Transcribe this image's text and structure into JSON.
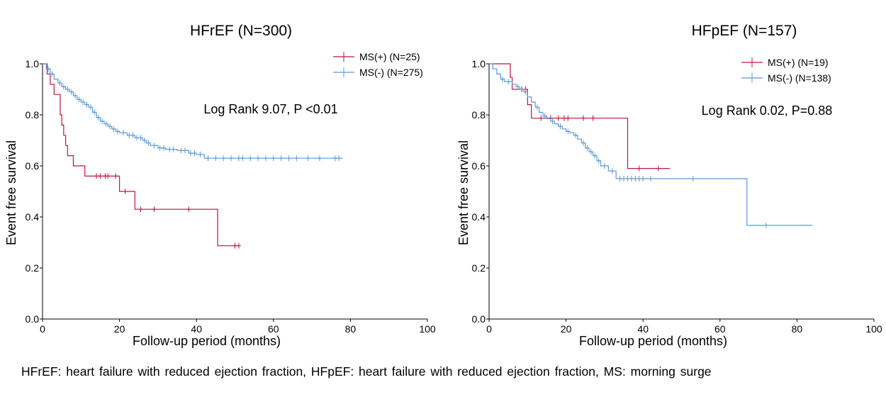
{
  "figure": {
    "caption": "HFrEF: heart failure with reduced ejection fraction, HFpEF: heart failure with reduced ejection fraction, MS: morning surge"
  },
  "chart_data": [
    {
      "type": "line",
      "subtype": "kaplan-meier",
      "title": "HFrEF (N=300)",
      "xlabel": "Follow-up period (months)",
      "ylabel": "Event free survival",
      "xlim": [
        0,
        100
      ],
      "ylim": [
        0.0,
        1.0
      ],
      "xticks": [
        "0",
        "20",
        "40",
        "60",
        "80",
        "100"
      ],
      "yticks": [
        "0.0",
        "0.2",
        "0.4",
        "0.6",
        "0.8",
        "1.0"
      ],
      "annotation": "Log Rank 9.07, P <0.01",
      "legend_position": "top-right",
      "grid": false,
      "series": [
        {
          "name": "MS(+) (N=25)",
          "color": "#c0143c",
          "steps": [
            [
              0,
              1.0
            ],
            [
              1.2,
              0.96
            ],
            [
              2,
              0.92
            ],
            [
              3,
              0.88
            ],
            [
              4.6,
              0.8
            ],
            [
              5,
              0.76
            ],
            [
              5.5,
              0.72
            ],
            [
              6,
              0.68
            ],
            [
              6.5,
              0.64
            ],
            [
              8,
              0.6
            ],
            [
              11,
              0.56
            ],
            [
              20,
              0.5
            ],
            [
              24,
              0.43
            ],
            [
              45.5,
              0.287
            ]
          ],
          "end_x": 51,
          "censored": [
            [
              14,
              0.56
            ],
            [
              15,
              0.56
            ],
            [
              16.3,
              0.56
            ],
            [
              17,
              0.56
            ],
            [
              19,
              0.56
            ],
            [
              21.5,
              0.5
            ],
            [
              25.5,
              0.43
            ],
            [
              29,
              0.43
            ],
            [
              38,
              0.43
            ],
            [
              50,
              0.287
            ],
            [
              51,
              0.287
            ]
          ]
        },
        {
          "name": "MS(-) (N=275)",
          "color": "#5b9bd5",
          "steps": [
            [
              0,
              1.0
            ],
            [
              1,
              0.98
            ],
            [
              2,
              0.96
            ],
            [
              3,
              0.94
            ],
            [
              4,
              0.925
            ],
            [
              5,
              0.91
            ],
            [
              6,
              0.9
            ],
            [
              7,
              0.89
            ],
            [
              8,
              0.875
            ],
            [
              9,
              0.86
            ],
            [
              10,
              0.85
            ],
            [
              11,
              0.84
            ],
            [
              12,
              0.83
            ],
            [
              13,
              0.81
            ],
            [
              14,
              0.79
            ],
            [
              15,
              0.775
            ],
            [
              16,
              0.765
            ],
            [
              17,
              0.755
            ],
            [
              18,
              0.745
            ],
            [
              19,
              0.735
            ],
            [
              20,
              0.73
            ],
            [
              22,
              0.72
            ],
            [
              24,
              0.71
            ],
            [
              26,
              0.7
            ],
            [
              27,
              0.69
            ],
            [
              28,
              0.68
            ],
            [
              30,
              0.67
            ],
            [
              32,
              0.665
            ],
            [
              35,
              0.66
            ],
            [
              38,
              0.65
            ],
            [
              40,
              0.645
            ],
            [
              42,
              0.63
            ]
          ],
          "end_x": 78,
          "censored": [
            [
              1.5,
              0.98
            ],
            [
              2.5,
              0.96
            ],
            [
              4.5,
              0.925
            ],
            [
              5.5,
              0.91
            ],
            [
              6.5,
              0.9
            ],
            [
              7.5,
              0.89
            ],
            [
              8.5,
              0.875
            ],
            [
              9.5,
              0.86
            ],
            [
              10.5,
              0.85
            ],
            [
              11.5,
              0.84
            ],
            [
              12.5,
              0.83
            ],
            [
              13.5,
              0.81
            ],
            [
              14.5,
              0.79
            ],
            [
              15.5,
              0.775
            ],
            [
              16.5,
              0.765
            ],
            [
              17.5,
              0.755
            ],
            [
              18.5,
              0.745
            ],
            [
              19.5,
              0.735
            ],
            [
              21,
              0.73
            ],
            [
              22.5,
              0.72
            ],
            [
              23.5,
              0.72
            ],
            [
              24.5,
              0.71
            ],
            [
              25.5,
              0.71
            ],
            [
              26.5,
              0.7
            ],
            [
              27.5,
              0.69
            ],
            [
              29,
              0.68
            ],
            [
              30.5,
              0.67
            ],
            [
              31.5,
              0.67
            ],
            [
              33,
              0.665
            ],
            [
              34,
              0.665
            ],
            [
              36,
              0.66
            ],
            [
              37,
              0.66
            ],
            [
              38.5,
              0.65
            ],
            [
              39.5,
              0.65
            ],
            [
              41,
              0.645
            ],
            [
              43,
              0.63
            ],
            [
              45,
              0.63
            ],
            [
              47,
              0.63
            ],
            [
              49,
              0.63
            ],
            [
              51,
              0.63
            ],
            [
              52,
              0.63
            ],
            [
              54,
              0.63
            ],
            [
              56,
              0.63
            ],
            [
              58,
              0.63
            ],
            [
              60,
              0.63
            ],
            [
              62,
              0.63
            ],
            [
              64,
              0.63
            ],
            [
              66,
              0.63
            ],
            [
              69,
              0.63
            ],
            [
              72,
              0.63
            ],
            [
              76,
              0.63
            ],
            [
              77,
              0.63
            ]
          ]
        }
      ]
    },
    {
      "type": "line",
      "subtype": "kaplan-meier",
      "title": "HFpEF (N=157)",
      "xlabel": "Follow-up period (months)",
      "ylabel": "Event free survival",
      "xlim": [
        0,
        100
      ],
      "ylim": [
        0.0,
        1.0
      ],
      "xticks": [
        "0",
        "20",
        "40",
        "60",
        "80",
        "100"
      ],
      "yticks": [
        "0.0",
        "0.2",
        "0.4",
        "0.6",
        "0.8",
        "1.0"
      ],
      "annotation": "Log Rank 0.02, P=0.88",
      "legend_position": "top-right",
      "grid": false,
      "series": [
        {
          "name": "MS(+) (N=19)",
          "color": "#c0143c",
          "steps": [
            [
              0,
              1.0
            ],
            [
              5.5,
              0.947
            ],
            [
              6,
              0.9
            ],
            [
              10,
              0.84
            ],
            [
              11,
              0.787
            ],
            [
              36,
              0.59
            ]
          ],
          "end_x": 47,
          "censored": [
            [
              8.5,
              0.9
            ],
            [
              9.5,
              0.9
            ],
            [
              13.5,
              0.787
            ],
            [
              16,
              0.787
            ],
            [
              18,
              0.787
            ],
            [
              19.5,
              0.787
            ],
            [
              20.5,
              0.787
            ],
            [
              24.5,
              0.787
            ],
            [
              27,
              0.787
            ],
            [
              39,
              0.59
            ],
            [
              44,
              0.59
            ]
          ]
        },
        {
          "name": "MS(-) (N=138)",
          "color": "#5b9bd5",
          "steps": [
            [
              0,
              1.0
            ],
            [
              1,
              0.98
            ],
            [
              2,
              0.96
            ],
            [
              3,
              0.94
            ],
            [
              4,
              0.93
            ],
            [
              6,
              0.92
            ],
            [
              7,
              0.91
            ],
            [
              8,
              0.9
            ],
            [
              9,
              0.89
            ],
            [
              10,
              0.87
            ],
            [
              11,
              0.85
            ],
            [
              12,
              0.83
            ],
            [
              13,
              0.81
            ],
            [
              14,
              0.795
            ],
            [
              15,
              0.785
            ],
            [
              16,
              0.775
            ],
            [
              17,
              0.765
            ],
            [
              18,
              0.755
            ],
            [
              19,
              0.745
            ],
            [
              20,
              0.735
            ],
            [
              21,
              0.73
            ],
            [
              22,
              0.72
            ],
            [
              23,
              0.705
            ],
            [
              24,
              0.69
            ],
            [
              25,
              0.67
            ],
            [
              26,
              0.655
            ],
            [
              27,
              0.64
            ],
            [
              28,
              0.62
            ],
            [
              29,
              0.6
            ],
            [
              31,
              0.58
            ],
            [
              33,
              0.55
            ],
            [
              67,
              0.367
            ]
          ],
          "end_x": 84,
          "censored": [
            [
              3.5,
              0.94
            ],
            [
              5,
              0.93
            ],
            [
              7.5,
              0.91
            ],
            [
              9.5,
              0.89
            ],
            [
              12.5,
              0.83
            ],
            [
              14.5,
              0.795
            ],
            [
              16.5,
              0.775
            ],
            [
              18.5,
              0.755
            ],
            [
              20.5,
              0.735
            ],
            [
              22.5,
              0.72
            ],
            [
              24.5,
              0.69
            ],
            [
              25.5,
              0.67
            ],
            [
              26.5,
              0.655
            ],
            [
              27.5,
              0.64
            ],
            [
              28.5,
              0.62
            ],
            [
              30,
              0.6
            ],
            [
              32,
              0.58
            ],
            [
              34,
              0.55
            ],
            [
              35,
              0.55
            ],
            [
              36,
              0.55
            ],
            [
              37,
              0.55
            ],
            [
              38,
              0.55
            ],
            [
              39,
              0.55
            ],
            [
              40,
              0.55
            ],
            [
              42,
              0.55
            ],
            [
              53,
              0.55
            ],
            [
              72,
              0.367
            ]
          ]
        }
      ]
    }
  ]
}
